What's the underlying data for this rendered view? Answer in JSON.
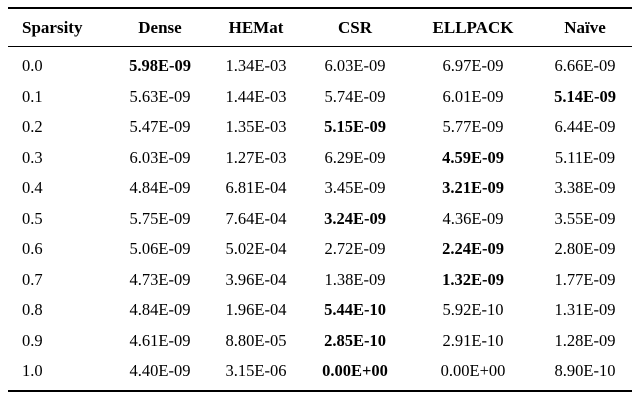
{
  "table": {
    "columns": [
      "Sparsity",
      "Dense",
      "HEMat",
      "CSR",
      "ELLPACK",
      "Naïve"
    ],
    "rows": [
      {
        "sparsity": "0.0",
        "values": [
          "5.98E-09",
          "1.34E-03",
          "6.03E-09",
          "6.97E-09",
          "6.66E-09"
        ],
        "bold_index": 0
      },
      {
        "sparsity": "0.1",
        "values": [
          "5.63E-09",
          "1.44E-03",
          "5.74E-09",
          "6.01E-09",
          "5.14E-09"
        ],
        "bold_index": 4
      },
      {
        "sparsity": "0.2",
        "values": [
          "5.47E-09",
          "1.35E-03",
          "5.15E-09",
          "5.77E-09",
          "6.44E-09"
        ],
        "bold_index": 2
      },
      {
        "sparsity": "0.3",
        "values": [
          "6.03E-09",
          "1.27E-03",
          "6.29E-09",
          "4.59E-09",
          "5.11E-09"
        ],
        "bold_index": 3
      },
      {
        "sparsity": "0.4",
        "values": [
          "4.84E-09",
          "6.81E-04",
          "3.45E-09",
          "3.21E-09",
          "3.38E-09"
        ],
        "bold_index": 3
      },
      {
        "sparsity": "0.5",
        "values": [
          "5.75E-09",
          "7.64E-04",
          "3.24E-09",
          "4.36E-09",
          "3.55E-09"
        ],
        "bold_index": 2
      },
      {
        "sparsity": "0.6",
        "values": [
          "5.06E-09",
          "5.02E-04",
          "2.72E-09",
          "2.24E-09",
          "2.80E-09"
        ],
        "bold_index": 3
      },
      {
        "sparsity": "0.7",
        "values": [
          "4.73E-09",
          "3.96E-04",
          "1.38E-09",
          "1.32E-09",
          "1.77E-09"
        ],
        "bold_index": 3
      },
      {
        "sparsity": "0.8",
        "values": [
          "4.84E-09",
          "1.96E-04",
          "5.44E-10",
          "5.92E-10",
          "1.31E-09"
        ],
        "bold_index": 2
      },
      {
        "sparsity": "0.9",
        "values": [
          "4.61E-09",
          "8.80E-05",
          "2.85E-10",
          "2.91E-10",
          "1.28E-09"
        ],
        "bold_index": 2
      },
      {
        "sparsity": "1.0",
        "values": [
          "4.40E-09",
          "3.15E-06",
          "0.00E+00",
          "0.00E+00",
          "8.90E-10"
        ],
        "bold_index": 2
      }
    ]
  }
}
